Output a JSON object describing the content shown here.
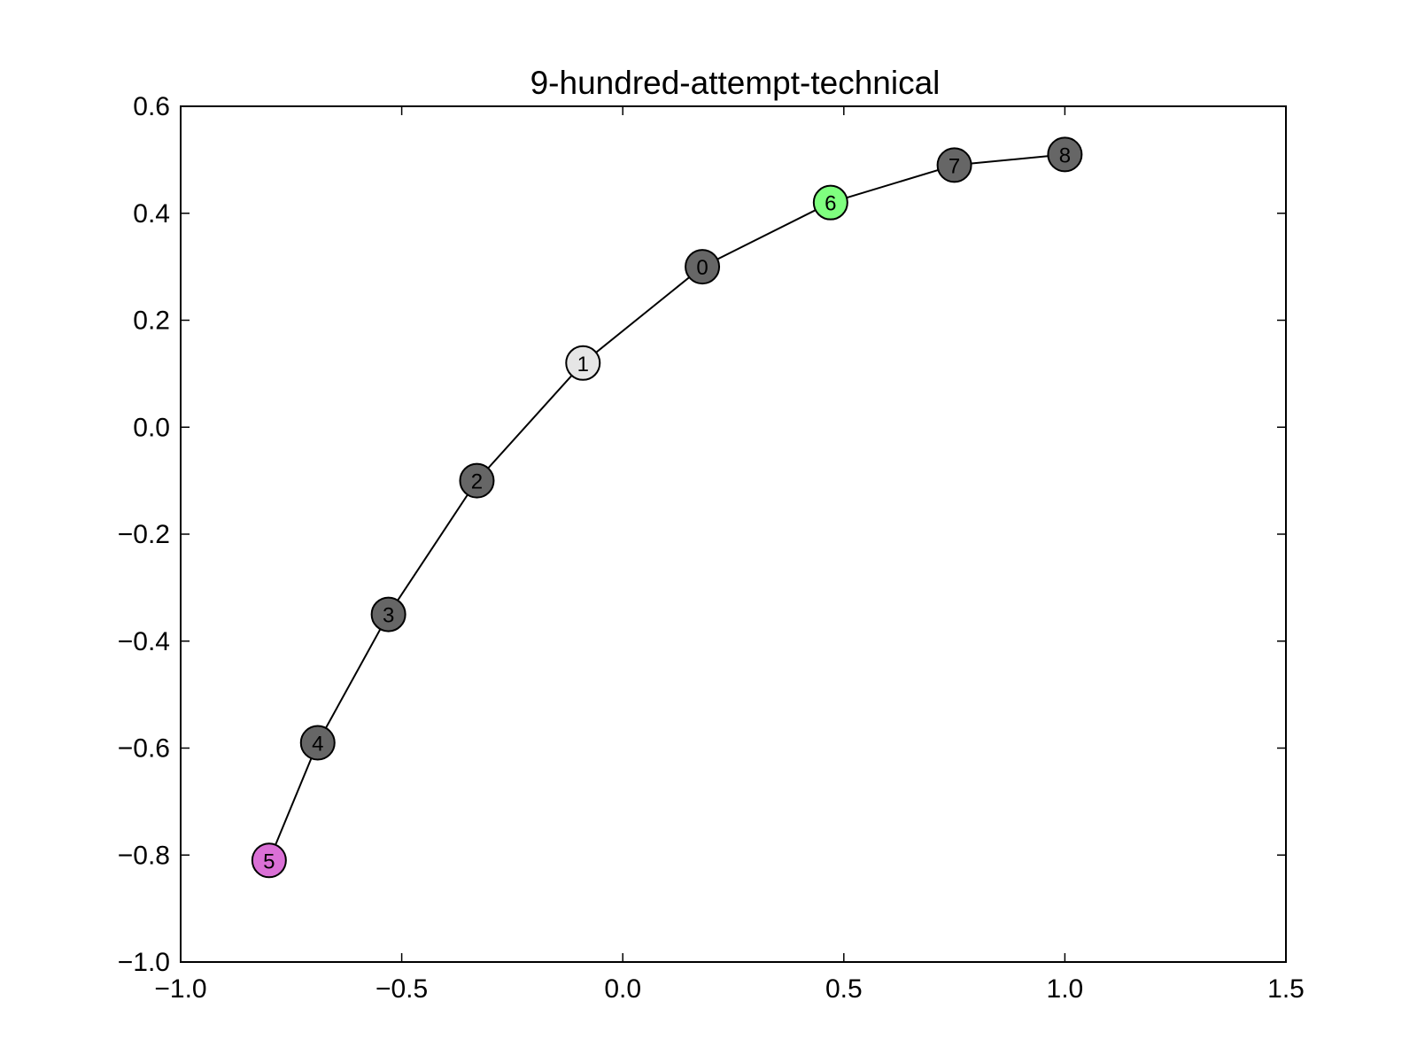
{
  "chart_data": {
    "type": "scatter",
    "title": "9-hundred-attempt-technical",
    "xlabel": "",
    "ylabel": "",
    "xlim": [
      -1.0,
      1.5
    ],
    "ylim": [
      -1.0,
      0.6
    ],
    "xticks": [
      -1.0,
      -0.5,
      0.0,
      0.5,
      1.0,
      1.5
    ],
    "yticks": [
      -1.0,
      -0.8,
      -0.6,
      -0.4,
      -0.2,
      0.0,
      0.2,
      0.4,
      0.6
    ],
    "xtick_labels": [
      "−1.0",
      "−0.5",
      "0.0",
      "0.5",
      "1.0",
      "1.5"
    ],
    "ytick_labels": [
      "−1.0",
      "−0.8",
      "−0.6",
      "−0.4",
      "−0.2",
      "0.0",
      "0.2",
      "0.4",
      "0.6"
    ],
    "grid": false,
    "nodes": [
      {
        "label": "5",
        "x": -0.8,
        "y": -0.81,
        "color": "#da70d6"
      },
      {
        "label": "4",
        "x": -0.69,
        "y": -0.59,
        "color": "#666666"
      },
      {
        "label": "3",
        "x": -0.53,
        "y": -0.35,
        "color": "#666666"
      },
      {
        "label": "2",
        "x": -0.33,
        "y": -0.1,
        "color": "#666666"
      },
      {
        "label": "1",
        "x": -0.09,
        "y": 0.12,
        "color": "#e6e6e6"
      },
      {
        "label": "0",
        "x": 0.18,
        "y": 0.3,
        "color": "#666666"
      },
      {
        "label": "6",
        "x": 0.47,
        "y": 0.42,
        "color": "#7fff7f"
      },
      {
        "label": "7",
        "x": 0.75,
        "y": 0.49,
        "color": "#666666"
      },
      {
        "label": "8",
        "x": 1.0,
        "y": 0.51,
        "color": "#666666"
      }
    ],
    "edges": [
      [
        "5",
        "4"
      ],
      [
        "4",
        "3"
      ],
      [
        "3",
        "2"
      ],
      [
        "2",
        "1"
      ],
      [
        "1",
        "0"
      ],
      [
        "0",
        "6"
      ],
      [
        "6",
        "7"
      ],
      [
        "7",
        "8"
      ]
    ]
  }
}
